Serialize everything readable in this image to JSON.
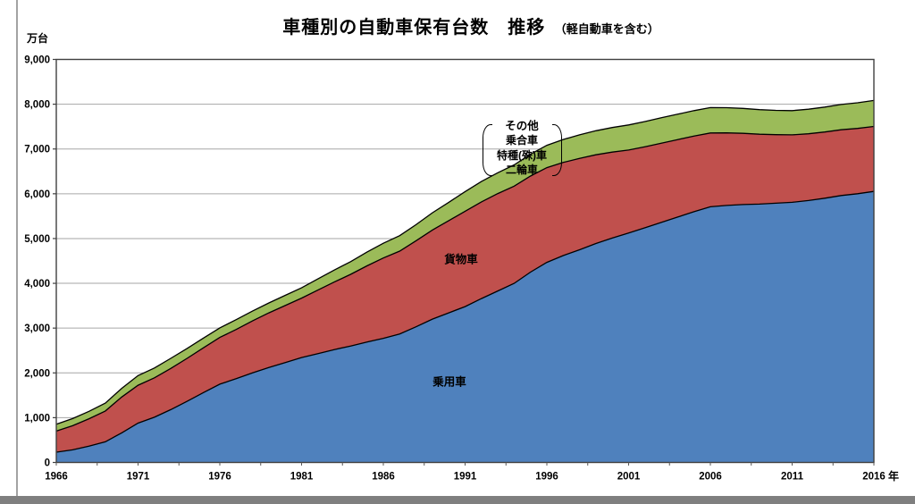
{
  "page": {
    "background": "#ffffff",
    "bottom_bar_color": "#7f7f7f",
    "left_border_color": "#a3a3a3"
  },
  "title": {
    "main": "車種別の自動車保有台数　推移",
    "note": "（軽自動車を含む）"
  },
  "axis": {
    "unit_label": "万台",
    "year_label": "年"
  },
  "legend": {
    "other_label": "その他",
    "items": [
      "乗合車",
      "特種(殊)車",
      "二輪車"
    ]
  },
  "area_labels": {
    "passenger": "乗用車",
    "freight": "貨物車"
  },
  "chart_data": {
    "type": "area",
    "stacked": true,
    "title": "車種別の自動車保有台数　推移（軽自動車を含む）",
    "ylabel": "万台",
    "xlabel": "年",
    "ylim": [
      0,
      9000
    ],
    "y_tick_step": 1000,
    "grid": "on",
    "legend_position": "inside-top",
    "y_tick_labels": [
      "0",
      "1,000",
      "2,000",
      "3,000",
      "4,000",
      "5,000",
      "6,000",
      "7,000",
      "8,000",
      "9,000"
    ],
    "x_tick_years": [
      1966,
      1971,
      1976,
      1981,
      1986,
      1991,
      1996,
      2001,
      2006,
      2011,
      2016
    ],
    "x": [
      1966,
      1967,
      1968,
      1969,
      1970,
      1971,
      1972,
      1973,
      1974,
      1975,
      1976,
      1977,
      1978,
      1979,
      1980,
      1981,
      1982,
      1983,
      1984,
      1985,
      1986,
      1987,
      1988,
      1989,
      1990,
      1991,
      1992,
      1993,
      1994,
      1995,
      1996,
      1997,
      1998,
      1999,
      2000,
      2001,
      2002,
      2003,
      2004,
      2005,
      2006,
      2007,
      2008,
      2009,
      2010,
      2011,
      2012,
      2013,
      2014,
      2015,
      2016
    ],
    "series": [
      {
        "name": "乗用車",
        "color": "#4f81bd",
        "values": [
          229,
          281,
          366,
          460,
          660,
          878,
          1010,
          1180,
          1364,
          1560,
          1748,
          1870,
          2000,
          2120,
          2230,
          2342,
          2430,
          2520,
          2600,
          2690,
          2771,
          2870,
          3030,
          3200,
          3340,
          3480,
          3660,
          3830,
          4000,
          4250,
          4468,
          4620,
          4750,
          4890,
          5010,
          5122,
          5240,
          5360,
          5480,
          5600,
          5709,
          5740,
          5760,
          5770,
          5790,
          5810,
          5850,
          5900,
          5960,
          6000,
          6052
        ]
      },
      {
        "name": "貨物車",
        "color": "#c0504d",
        "values": [
          472,
          540,
          610,
          690,
          800,
          846,
          880,
          920,
          960,
          1000,
          1043,
          1100,
          1160,
          1220,
          1275,
          1328,
          1420,
          1510,
          1600,
          1700,
          1794,
          1850,
          1920,
          1990,
          2060,
          2129,
          2160,
          2175,
          2170,
          2145,
          2116,
          2080,
          2040,
          1980,
          1920,
          1855,
          1810,
          1770,
          1730,
          1690,
          1649,
          1620,
          1590,
          1560,
          1530,
          1506,
          1490,
          1480,
          1470,
          1460,
          1452
        ]
      },
      {
        "name": "その他",
        "color": "#9bbb59",
        "values": [
          151,
          158,
          166,
          175,
          195,
          215,
          220,
          225,
          222,
          218,
          215,
          218,
          220,
          222,
          226,
          230,
          248,
          266,
          284,
          307,
          330,
          345,
          360,
          385,
          410,
          440,
          455,
          465,
          475,
          487,
          498,
          512,
          525,
          538,
          550,
          560,
          563,
          566,
          567,
          567,
          566,
          563,
          557,
          548,
          543,
          540,
          548,
          556,
          564,
          572,
          580
        ]
      }
    ]
  }
}
